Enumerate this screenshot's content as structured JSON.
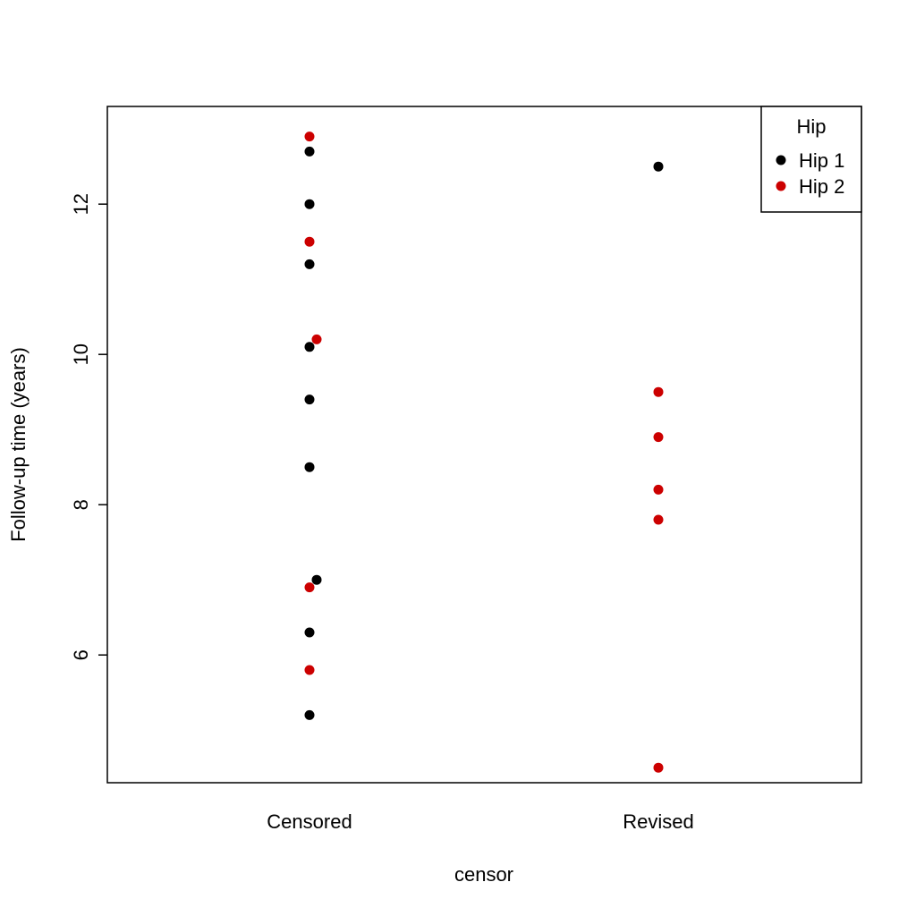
{
  "chart_data": {
    "type": "scatter",
    "xlabel": "censor",
    "ylabel": "Follow-up time (years)",
    "categories": [
      "Censored",
      "Revised"
    ],
    "ylim": [
      4.3,
      13.3
    ],
    "yticks": [
      "6",
      "8",
      "10",
      "12"
    ],
    "grid": false,
    "legend": {
      "title": "Hip",
      "placement": "top-right",
      "entries": [
        {
          "label": "Hip 1",
          "color": "#000000"
        },
        {
          "label": "Hip 2",
          "color": "#cc0000"
        }
      ]
    },
    "series": [
      {
        "name": "Hip 1",
        "color": "#000000",
        "points": [
          {
            "x": "Censored",
            "y": 12.7
          },
          {
            "x": "Censored",
            "y": 12.0
          },
          {
            "x": "Censored",
            "y": 11.2
          },
          {
            "x": "Censored",
            "y": 10.1
          },
          {
            "x": "Censored",
            "y": 9.4
          },
          {
            "x": "Censored",
            "y": 8.5
          },
          {
            "x": "Censored",
            "y": 7.0,
            "jitter": 1
          },
          {
            "x": "Censored",
            "y": 6.3
          },
          {
            "x": "Censored",
            "y": 5.2
          },
          {
            "x": "Revised",
            "y": 12.5
          }
        ]
      },
      {
        "name": "Hip 2",
        "color": "#cc0000",
        "points": [
          {
            "x": "Censored",
            "y": 12.9
          },
          {
            "x": "Censored",
            "y": 11.5
          },
          {
            "x": "Censored",
            "y": 10.2,
            "jitter": 1
          },
          {
            "x": "Censored",
            "y": 6.9
          },
          {
            "x": "Censored",
            "y": 5.8
          },
          {
            "x": "Revised",
            "y": 9.5
          },
          {
            "x": "Revised",
            "y": 8.9
          },
          {
            "x": "Revised",
            "y": 8.2
          },
          {
            "x": "Revised",
            "y": 7.8
          },
          {
            "x": "Revised",
            "y": 4.5
          }
        ]
      }
    ]
  }
}
